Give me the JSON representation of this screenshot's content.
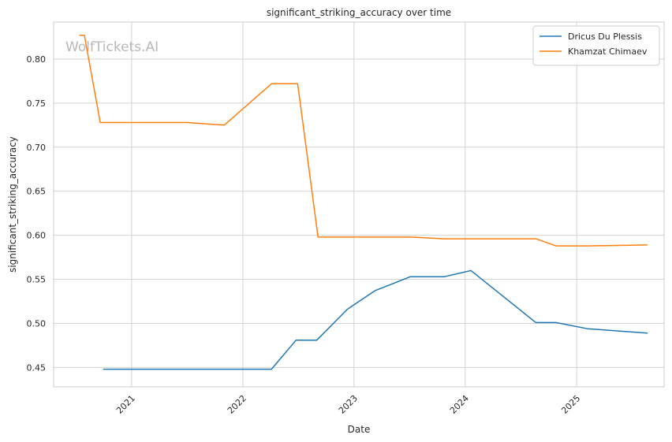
{
  "chart_data": {
    "type": "line",
    "title": "significant_striking_accuracy over time",
    "xlabel": "Date",
    "ylabel": "significant_striking_accuracy",
    "watermark": "WolfTickets.AI",
    "x_ticks": [
      "2021",
      "2022",
      "2023",
      "2024",
      "2025"
    ],
    "y_ticks": [
      "0.45",
      "0.50",
      "0.55",
      "0.60",
      "0.65",
      "0.70",
      "0.75",
      "0.80"
    ],
    "ylim": [
      0.428,
      0.842
    ],
    "xlim": [
      "2020-04-20",
      "2025-10-15"
    ],
    "grid": true,
    "legend_position": "top-right",
    "series": [
      {
        "name": "Dricus Du Plessis",
        "color": "#1f77b4",
        "points": [
          [
            "2020-10-01",
            0.448
          ],
          [
            "2022-04-05",
            0.448
          ],
          [
            "2022-06-25",
            0.481
          ],
          [
            "2022-09-01",
            0.481
          ],
          [
            "2022-12-10",
            0.516
          ],
          [
            "2023-03-10",
            0.537
          ],
          [
            "2023-07-05",
            0.553
          ],
          [
            "2023-10-25",
            0.553
          ],
          [
            "2024-01-20",
            0.56
          ],
          [
            "2024-08-20",
            0.501
          ],
          [
            "2024-10-25",
            0.501
          ],
          [
            "2025-02-05",
            0.494
          ],
          [
            "2025-08-20",
            0.489
          ]
        ]
      },
      {
        "name": "Khamzat Chimaev",
        "color": "#ff7f0e",
        "points": [
          [
            "2020-07-15",
            0.827
          ],
          [
            "2020-07-30",
            0.827
          ],
          [
            "2020-09-20",
            0.728
          ],
          [
            "2021-07-01",
            0.728
          ],
          [
            "2021-11-01",
            0.725
          ],
          [
            "2022-04-05",
            0.772
          ],
          [
            "2022-06-30",
            0.772
          ],
          [
            "2022-09-05",
            0.598
          ],
          [
            "2023-07-05",
            0.598
          ],
          [
            "2023-10-25",
            0.596
          ],
          [
            "2024-08-20",
            0.596
          ],
          [
            "2024-10-25",
            0.588
          ],
          [
            "2025-02-05",
            0.588
          ],
          [
            "2025-08-20",
            0.589
          ]
        ]
      }
    ]
  }
}
